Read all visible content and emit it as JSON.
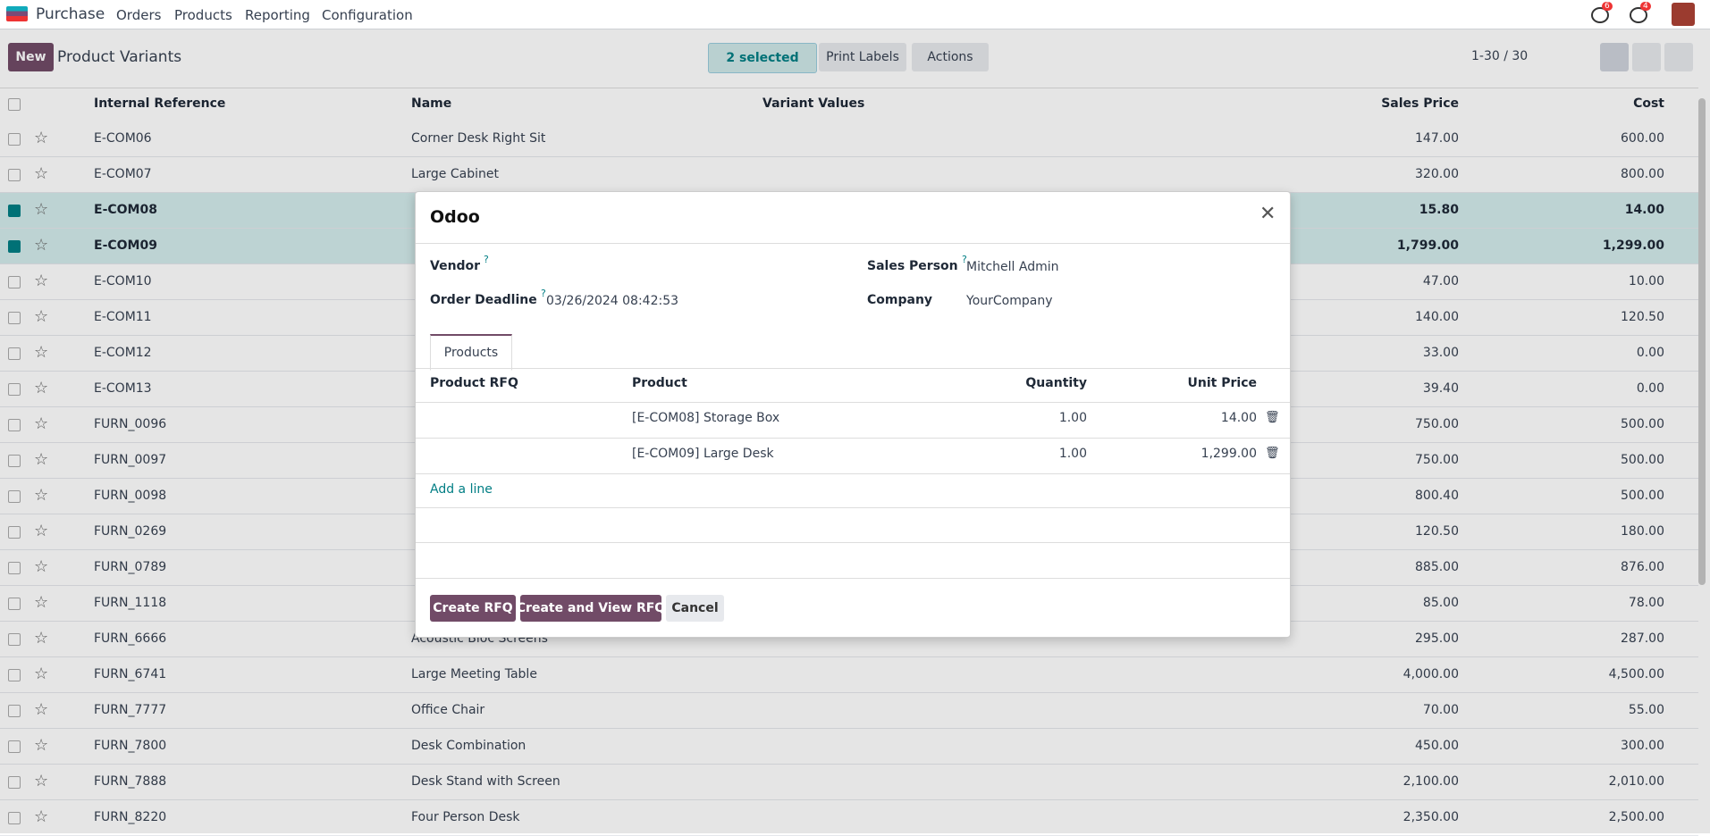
{
  "navbar": {
    "app": "Purchase",
    "menu": [
      "Orders",
      "Products",
      "Reporting",
      "Configuration"
    ],
    "badges": [
      "6",
      "4"
    ]
  },
  "control_panel": {
    "new": "New",
    "title": "Product Variants",
    "selected": "2 selected",
    "print": "Print Labels",
    "actions": "Actions",
    "pager": "1-30 / 30"
  },
  "table": {
    "columns": [
      "Internal Reference",
      "Name",
      "Variant Values",
      "Sales Price",
      "Cost"
    ],
    "rows": [
      {
        "ref": "E-COM06",
        "name": "Corner Desk Right Sit",
        "price": "147.00",
        "cost": "600.00",
        "selected": false
      },
      {
        "ref": "E-COM07",
        "name": "Large Cabinet",
        "price": "320.00",
        "cost": "800.00",
        "selected": false
      },
      {
        "ref": "E-COM08",
        "name": null,
        "price": "15.80",
        "cost": "14.00",
        "selected": true
      },
      {
        "ref": "E-COM09",
        "name": null,
        "price": "1,799.00",
        "cost": "1,299.00",
        "selected": true
      },
      {
        "ref": "E-COM10",
        "name": null,
        "price": "47.00",
        "cost": "10.00",
        "selected": false
      },
      {
        "ref": "E-COM11",
        "name": null,
        "price": "140.00",
        "cost": "120.50",
        "selected": false
      },
      {
        "ref": "E-COM12",
        "name": null,
        "price": "33.00",
        "cost": "0.00",
        "selected": false
      },
      {
        "ref": "E-COM13",
        "name": null,
        "price": "39.40",
        "cost": "0.00",
        "selected": false
      },
      {
        "ref": "FURN_0096",
        "name": null,
        "price": "750.00",
        "cost": "500.00",
        "selected": false
      },
      {
        "ref": "FURN_0097",
        "name": null,
        "price": "750.00",
        "cost": "500.00",
        "selected": false
      },
      {
        "ref": "FURN_0098",
        "name": null,
        "price": "800.40",
        "cost": "500.00",
        "selected": false
      },
      {
        "ref": "FURN_0269",
        "name": null,
        "price": "120.50",
        "cost": "180.00",
        "selected": false
      },
      {
        "ref": "FURN_0789",
        "name": null,
        "price": "885.00",
        "cost": "876.00",
        "selected": false
      },
      {
        "ref": "FURN_1118",
        "name": null,
        "price": "85.00",
        "cost": "78.00",
        "selected": false
      },
      {
        "ref": "FURN_6666",
        "name": "Acoustic Bloc Screens",
        "price": "295.00",
        "cost": "287.00",
        "selected": false
      },
      {
        "ref": "FURN_6741",
        "name": "Large Meeting Table",
        "price": "4,000.00",
        "cost": "4,500.00",
        "selected": false
      },
      {
        "ref": "FURN_7777",
        "name": "Office Chair",
        "price": "70.00",
        "cost": "55.00",
        "selected": false
      },
      {
        "ref": "FURN_7800",
        "name": "Desk Combination",
        "price": "450.00",
        "cost": "300.00",
        "selected": false
      },
      {
        "ref": "FURN_7888",
        "name": "Desk Stand with Screen",
        "price": "2,100.00",
        "cost": "2,010.00",
        "selected": false
      },
      {
        "ref": "FURN_8220",
        "name": "Four Person Desk",
        "price": "2,350.00",
        "cost": "2,500.00",
        "selected": false
      }
    ]
  },
  "dialog": {
    "title": "Odoo",
    "tooltip": "?",
    "fields": [
      {
        "label": "Vendor",
        "value": null
      },
      {
        "label": "Sales Person",
        "value": "Mitchell Admin"
      },
      {
        "label": "Order Deadline",
        "value": "03/26/2024 08:42:53"
      },
      {
        "label": "Company",
        "value": "YourCompany"
      }
    ],
    "tab": "Products",
    "columns": [
      "Product RFQ",
      "Product",
      "Quantity",
      "Unit Price"
    ],
    "lines": [
      {
        "product": "[E-COM08] Storage Box",
        "quantity": "1.00",
        "price": "14.00"
      },
      {
        "product": "[E-COM09] Large Desk",
        "quantity": "1.00",
        "price": "1,299.00"
      }
    ],
    "add_line": "Add a line",
    "buttons": [
      "Create RFQ",
      "Create and View RFQ",
      "Cancel"
    ]
  }
}
